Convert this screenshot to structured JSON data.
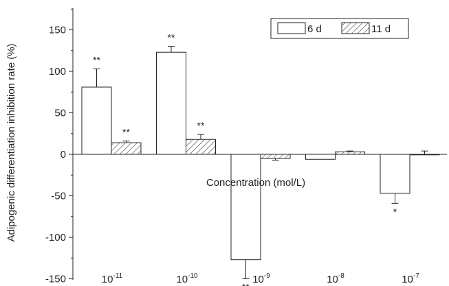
{
  "chart_data": {
    "type": "bar",
    "xlabel": "Concentration (mol/L)",
    "ylabel": "Adipogenic differentiation inhibition rate (%)",
    "ylim": [
      -150,
      175
    ],
    "yticks": [
      -150,
      -100,
      -50,
      0,
      50,
      100,
      150
    ],
    "categories": [
      {
        "base": "10",
        "exp": "-11"
      },
      {
        "base": "10",
        "exp": "-10"
      },
      {
        "base": "10",
        "exp": "-9"
      },
      {
        "base": "10",
        "exp": "-8"
      },
      {
        "base": "10",
        "exp": "-7"
      }
    ],
    "series": [
      {
        "name": "6 d",
        "pattern": "open",
        "values": [
          81,
          123,
          -127,
          -6,
          -47
        ],
        "errors": [
          22,
          7,
          23,
          0,
          12
        ],
        "significance": [
          "**",
          "**",
          "**",
          "",
          "*"
        ]
      },
      {
        "name": "11 d",
        "pattern": "hatched",
        "values": [
          14,
          18,
          -5,
          3,
          0
        ],
        "errors": [
          2,
          6,
          2,
          1,
          4
        ],
        "significance": [
          "**",
          "**",
          "",
          "",
          ""
        ]
      }
    ],
    "legend_position": "top-right",
    "grid": false
  }
}
